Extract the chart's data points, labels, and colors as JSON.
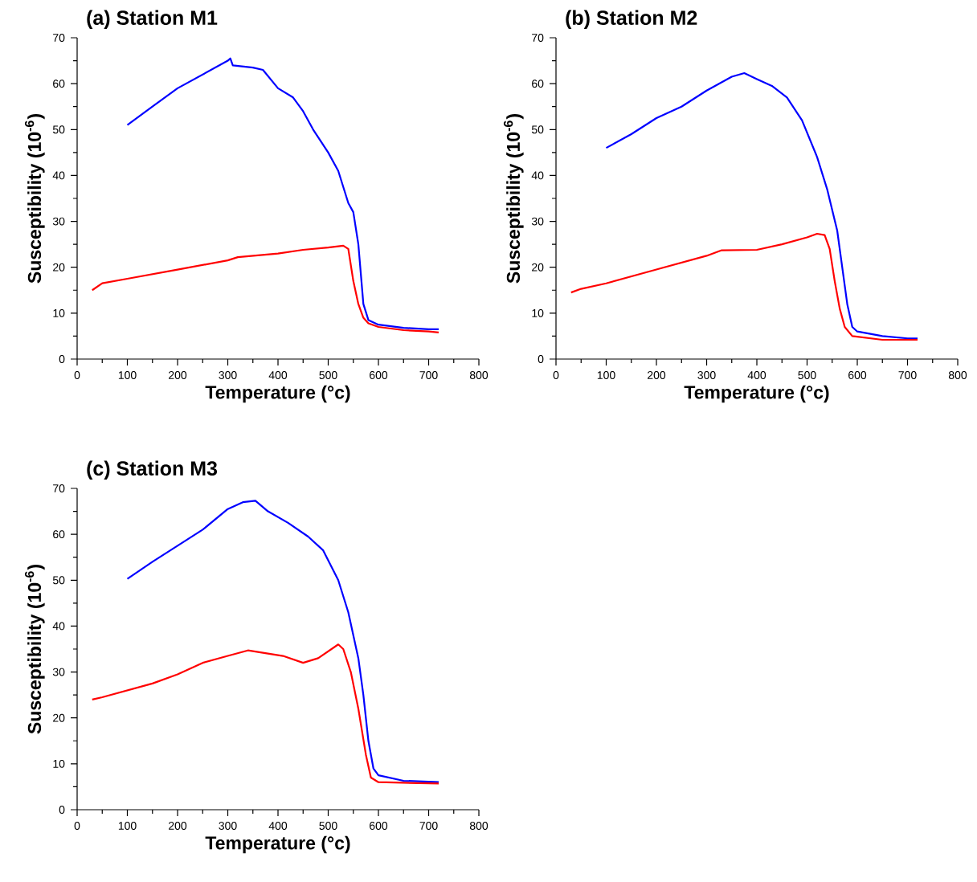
{
  "chart_data": [
    {
      "type": "line",
      "title": "(a) Station M1",
      "xlabel": "Temperature (°c)",
      "ylabel": "Susceptibility (10$^{-6}$)",
      "xlim": [
        0,
        800
      ],
      "xticks": [
        0,
        100,
        200,
        300,
        400,
        500,
        600,
        700,
        800
      ],
      "ylim": [
        0,
        70
      ],
      "yticks": [
        0,
        10,
        20,
        30,
        40,
        50,
        60,
        70
      ],
      "series": [
        {
          "color": "#0000ff",
          "x": [
            100,
            150,
            200,
            250,
            300,
            305,
            310,
            350,
            370,
            400,
            430,
            450,
            470,
            500,
            520,
            540,
            550,
            560,
            570,
            580,
            600,
            650,
            700,
            720
          ],
          "values": [
            51,
            55,
            59,
            62,
            65,
            65.5,
            64,
            63.5,
            63,
            59,
            57,
            54,
            50,
            45,
            41,
            34,
            32,
            25,
            12,
            8.5,
            7.5,
            6.8,
            6.5,
            6.5
          ]
        },
        {
          "color": "#ff0000",
          "x": [
            30,
            50,
            100,
            200,
            300,
            320,
            400,
            450,
            500,
            530,
            540,
            550,
            560,
            570,
            580,
            600,
            650,
            700,
            720
          ],
          "values": [
            15,
            16.5,
            17.5,
            19.5,
            21.5,
            22.2,
            23,
            23.8,
            24.3,
            24.7,
            24,
            17,
            12,
            9,
            7.8,
            7,
            6.3,
            6,
            5.8
          ]
        }
      ]
    },
    {
      "type": "line",
      "title": "(b) Station M2",
      "xlabel": "Temperature (°c)",
      "ylabel": "Susceptibility (10$^{-6}$)",
      "xlim": [
        0,
        800
      ],
      "xticks": [
        0,
        100,
        200,
        300,
        400,
        500,
        600,
        700,
        800
      ],
      "ylim": [
        0,
        70
      ],
      "yticks": [
        0,
        10,
        20,
        30,
        40,
        50,
        60,
        70
      ],
      "series": [
        {
          "color": "#0000ff",
          "x": [
            100,
            150,
            200,
            250,
            300,
            350,
            375,
            400,
            430,
            460,
            490,
            520,
            540,
            560,
            570,
            580,
            590,
            600,
            650,
            700,
            720
          ],
          "values": [
            46,
            49,
            52.5,
            55,
            58.5,
            61.5,
            62.3,
            61,
            59.5,
            57,
            52,
            44,
            37,
            28,
            20,
            12,
            7,
            6,
            5,
            4.5,
            4.5
          ]
        },
        {
          "color": "#ff0000",
          "x": [
            30,
            50,
            100,
            200,
            300,
            330,
            400,
            450,
            500,
            520,
            535,
            545,
            555,
            565,
            575,
            590,
            650,
            720
          ],
          "values": [
            14.5,
            15.3,
            16.5,
            19.5,
            22.5,
            23.7,
            23.8,
            25,
            26.5,
            27.3,
            27,
            24,
            17,
            11,
            7,
            5,
            4.2,
            4.2
          ]
        }
      ]
    },
    {
      "type": "line",
      "title": "(c) Station M3",
      "xlabel": "Temperature (°c)",
      "ylabel": "Susceptibility (10$^{-6}$)",
      "xlim": [
        0,
        800
      ],
      "xticks": [
        0,
        100,
        200,
        300,
        400,
        500,
        600,
        700,
        800
      ],
      "ylim": [
        0,
        70
      ],
      "yticks": [
        0,
        10,
        20,
        30,
        40,
        50,
        60,
        70
      ],
      "series": [
        {
          "color": "#0000ff",
          "x": [
            100,
            150,
            200,
            250,
            300,
            330,
            355,
            380,
            420,
            460,
            490,
            520,
            540,
            560,
            570,
            580,
            590,
            600,
            650,
            720
          ],
          "values": [
            50.3,
            54,
            57.5,
            61,
            65.5,
            67,
            67.3,
            65,
            62.5,
            59.5,
            56.5,
            50,
            43,
            33,
            25,
            15,
            9,
            7.5,
            6.3,
            6
          ]
        },
        {
          "color": "#ff0000",
          "x": [
            30,
            50,
            100,
            150,
            200,
            250,
            300,
            340,
            380,
            410,
            450,
            480,
            500,
            520,
            530,
            545,
            560,
            575,
            585,
            600,
            720
          ],
          "values": [
            24,
            24.5,
            26,
            27.5,
            29.5,
            32,
            33.5,
            34.7,
            34,
            33.5,
            32,
            33,
            34.5,
            36,
            35,
            30,
            22,
            12,
            7,
            6,
            5.7
          ]
        }
      ]
    }
  ]
}
